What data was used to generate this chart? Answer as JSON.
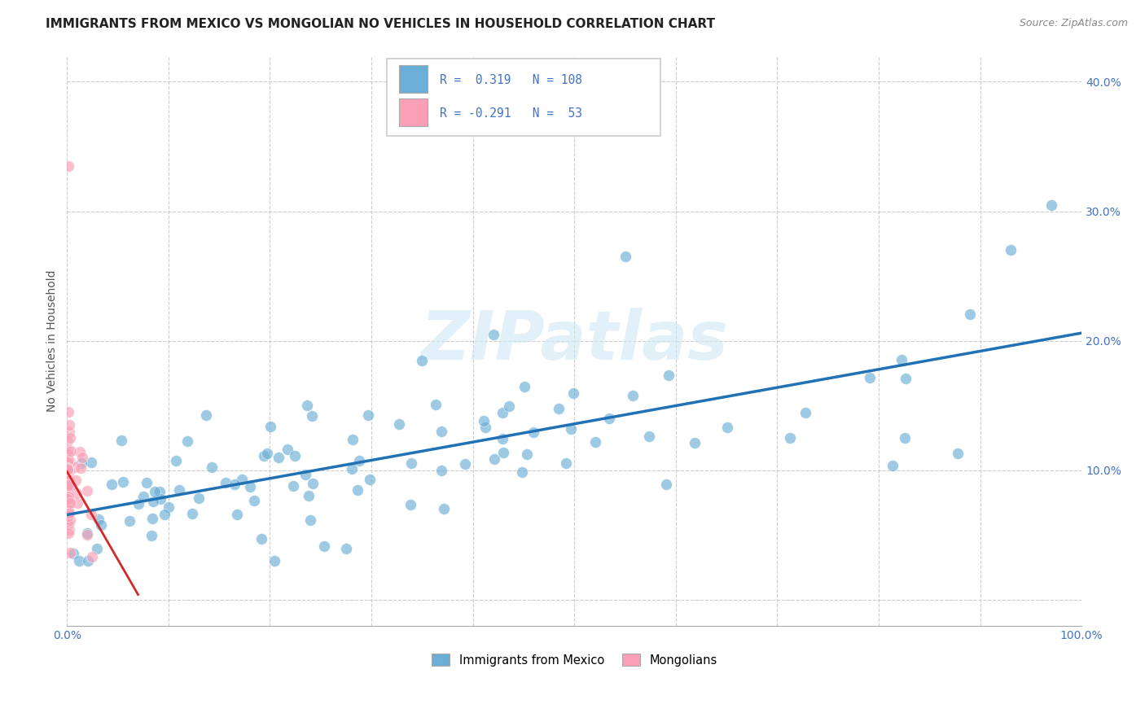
{
  "title": "IMMIGRANTS FROM MEXICO VS MONGOLIAN NO VEHICLES IN HOUSEHOLD CORRELATION CHART",
  "source": "Source: ZipAtlas.com",
  "ylabel": "No Vehicles in Household",
  "xlim": [
    0.0,
    1.0
  ],
  "ylim": [
    -0.02,
    0.42
  ],
  "x_ticks": [
    0.0,
    0.1,
    0.2,
    0.3,
    0.4,
    0.5,
    0.6,
    0.7,
    0.8,
    0.9,
    1.0
  ],
  "x_tick_labels": [
    "0.0%",
    "",
    "",
    "",
    "",
    "",
    "",
    "",
    "",
    "",
    "100.0%"
  ],
  "y_ticks": [
    0.0,
    0.1,
    0.2,
    0.3,
    0.4
  ],
  "y_tick_labels": [
    "",
    "10.0%",
    "20.0%",
    "30.0%",
    "40.0%"
  ],
  "blue_color": "#6baed6",
  "pink_color": "#fa9fb5",
  "blue_line_color": "#2171b5",
  "pink_line_color": "#d62728",
  "watermark": "ZIPatlas",
  "title_fontsize": 11,
  "axis_label_fontsize": 10,
  "tick_fontsize": 10,
  "blue_trend_x0": 0.0,
  "blue_trend_y0": 0.073,
  "blue_trend_x1": 1.0,
  "blue_trend_y1": 0.173,
  "pink_trend_x0": 0.0,
  "pink_trend_y0": 0.098,
  "pink_trend_x1": 0.065,
  "pink_trend_y1": 0.035
}
